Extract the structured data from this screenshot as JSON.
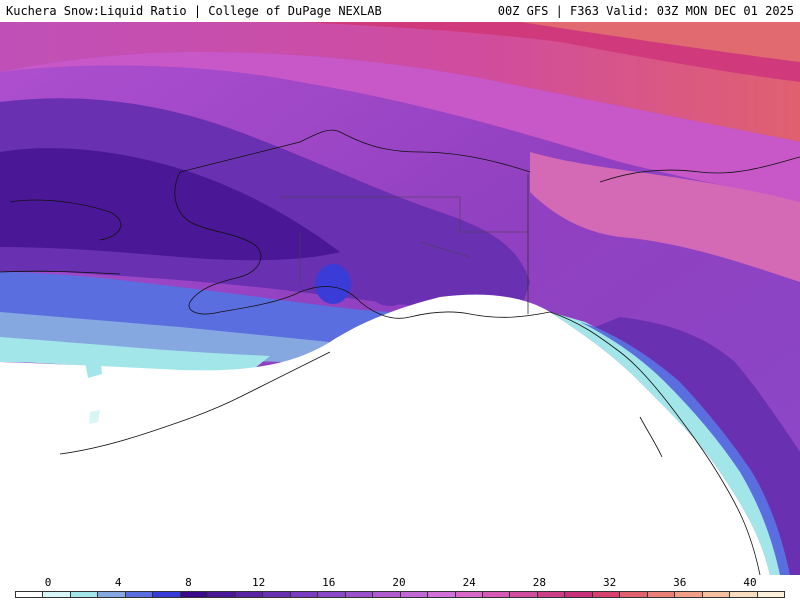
{
  "header": {
    "title_left": "Kuchera Snow:Liquid Ratio | College of DuPage NEXLAB",
    "title_right": "00Z GFS | F363 Valid: 03Z MON DEC 01 2025"
  },
  "legend": {
    "ticks": [
      "0",
      "4",
      "8",
      "12",
      "16",
      "20",
      "24",
      "28",
      "32",
      "36",
      "40"
    ],
    "colors": [
      "#ffffff",
      "#d8f6f6",
      "#a3e6ea",
      "#86a8e0",
      "#5a6ee0",
      "#3a3cd8",
      "#3a0a8a",
      "#4a1896",
      "#5a24a4",
      "#6a30b2",
      "#7a3cc0",
      "#8a48c8",
      "#9a52cc",
      "#b05cd0",
      "#c068d4",
      "#d070d8",
      "#d868c8",
      "#d45ab4",
      "#d04c9e",
      "#cc3e88",
      "#c8307a",
      "#d84070",
      "#e06070",
      "#e88078",
      "#f0a088",
      "#f4c0a0",
      "#f8dcc0",
      "#fcefdc"
    ]
  },
  "map": {
    "region": "Alaska",
    "field": "snow-to-liquid ratio"
  }
}
